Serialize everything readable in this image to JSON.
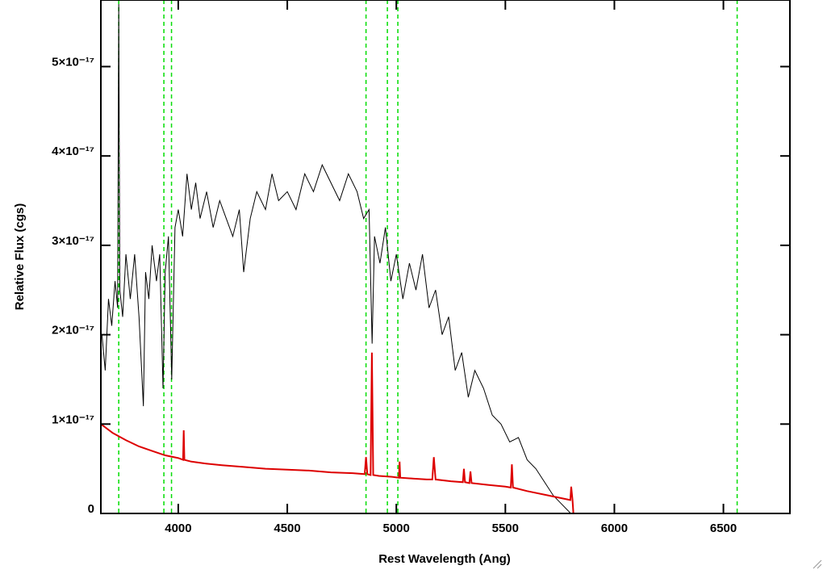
{
  "chart_data": {
    "type": "line",
    "x_label": "Rest Wavelength (Ang)",
    "y_label": "Relative Flux (cgs)",
    "xlim": [
      3645,
      6805
    ],
    "ylim": [
      0,
      5.745e-17
    ],
    "xticks": [
      4000,
      4500,
      5000,
      5500,
      6000,
      6500
    ],
    "yticks": [
      0,
      {
        "value": 1e-17,
        "label": "1×10⁻¹⁷"
      },
      {
        "value": 2e-17,
        "label": "2×10⁻¹⁷"
      },
      {
        "value": 3e-17,
        "label": "3×10⁻¹⁷"
      },
      {
        "value": 4e-17,
        "label": "4×10⁻¹⁷"
      },
      {
        "value": 5e-17,
        "label": "5×10⁻¹⁷"
      }
    ],
    "vlines": {
      "color": "#00dd00",
      "x": [
        3727,
        3934,
        3969,
        4861,
        4959,
        5007,
        6563
      ]
    },
    "series": [
      {
        "color": "#000000",
        "x": [
          3650,
          3665,
          3680,
          3695,
          3710,
          3722,
          3727,
          3732,
          3745,
          3760,
          3780,
          3800,
          3820,
          3840,
          3850,
          3865,
          3880,
          3900,
          3915,
          3930,
          3940,
          3955,
          3970,
          3985,
          4000,
          4020,
          4040,
          4060,
          4080,
          4100,
          4130,
          4160,
          4190,
          4220,
          4250,
          4280,
          4300,
          4330,
          4360,
          4400,
          4430,
          4460,
          4500,
          4540,
          4580,
          4620,
          4660,
          4700,
          4740,
          4780,
          4820,
          4850,
          4875,
          4889,
          4900,
          4925,
          4950,
          4975,
          5000,
          5030,
          5060,
          5090,
          5120,
          5150,
          5180,
          5210,
          5240,
          5270,
          5300,
          5330,
          5360,
          5400,
          5440,
          5480,
          5520,
          5560,
          5600,
          5640,
          5680,
          5720,
          5760,
          5800
        ],
        "values": [
          2e-17,
          1.6e-17,
          2.4e-17,
          2.1e-17,
          2.6e-17,
          2.3e-17,
          5.7e-17,
          2.5e-17,
          2.2e-17,
          2.9e-17,
          2.4e-17,
          2.9e-17,
          2.2e-17,
          1.2e-17,
          2.7e-17,
          2.4e-17,
          3e-17,
          2.6e-17,
          2.9e-17,
          1.4e-17,
          2.7e-17,
          3.1e-17,
          1.5e-17,
          3.2e-17,
          3.4e-17,
          3.1e-17,
          3.8e-17,
          3.4e-17,
          3.7e-17,
          3.3e-17,
          3.6e-17,
          3.2e-17,
          3.5e-17,
          3.3e-17,
          3.1e-17,
          3.4e-17,
          2.7e-17,
          3.3e-17,
          3.6e-17,
          3.4e-17,
          3.8e-17,
          3.5e-17,
          3.6e-17,
          3.4e-17,
          3.8e-17,
          3.6e-17,
          3.9e-17,
          3.7e-17,
          3.5e-17,
          3.8e-17,
          3.6e-17,
          3.3e-17,
          3.4e-17,
          1.9e-17,
          3.1e-17,
          2.8e-17,
          3.2e-17,
          2.6e-17,
          2.9e-17,
          2.4e-17,
          2.8e-17,
          2.5e-17,
          2.9e-17,
          2.3e-17,
          2.5e-17,
          2e-17,
          2.2e-17,
          1.6e-17,
          1.8e-17,
          1.3e-17,
          1.6e-17,
          1.4e-17,
          1.1e-17,
          1e-17,
          8e-18,
          8.5e-18,
          6e-18,
          5e-18,
          3.5e-18,
          2e-18,
          1e-18,
          0
        ]
      },
      {
        "color": "#dd0000",
        "x": [
          3645,
          3700,
          3760,
          3820,
          3880,
          3940,
          4000,
          4022,
          4025,
          4028,
          4060,
          4120,
          4200,
          4300,
          4400,
          4500,
          4600,
          4700,
          4800,
          4855,
          4861,
          4867,
          4882,
          4888,
          4894,
          4920,
          4980,
          5012,
          5015,
          5018,
          5080,
          5140,
          5165,
          5172,
          5180,
          5250,
          5305,
          5310,
          5315,
          5335,
          5340,
          5345,
          5420,
          5500,
          5525,
          5530,
          5535,
          5600,
          5700,
          5798,
          5802,
          5808,
          5812,
          6000,
          6400,
          6805
        ],
        "values": [
          1e-17,
          9e-18,
          8.2e-18,
          7.5e-18,
          7e-18,
          6.5e-18,
          6.2e-18,
          6e-18,
          9.3e-18,
          6e-18,
          5.8e-18,
          5.6e-18,
          5.4e-18,
          5.2e-18,
          5e-18,
          4.9e-18,
          4.8e-18,
          4.6e-18,
          4.5e-18,
          4.4e-18,
          6.3e-18,
          4.4e-18,
          4.3e-18,
          1.8e-17,
          4.3e-18,
          4.2e-18,
          4.1e-18,
          4e-18,
          5.8e-18,
          4e-18,
          3.9e-18,
          3.8e-18,
          3.8e-18,
          6.3e-18,
          3.8e-18,
          3.6e-18,
          3.5e-18,
          5e-18,
          3.5e-18,
          3.4e-18,
          4.7e-18,
          3.4e-18,
          3.2e-18,
          3e-18,
          2.9e-18,
          5.5e-18,
          2.9e-18,
          2.5e-18,
          2e-18,
          1.5e-18,
          3e-18,
          1.5e-18,
          0,
          0,
          0,
          0
        ]
      }
    ]
  }
}
